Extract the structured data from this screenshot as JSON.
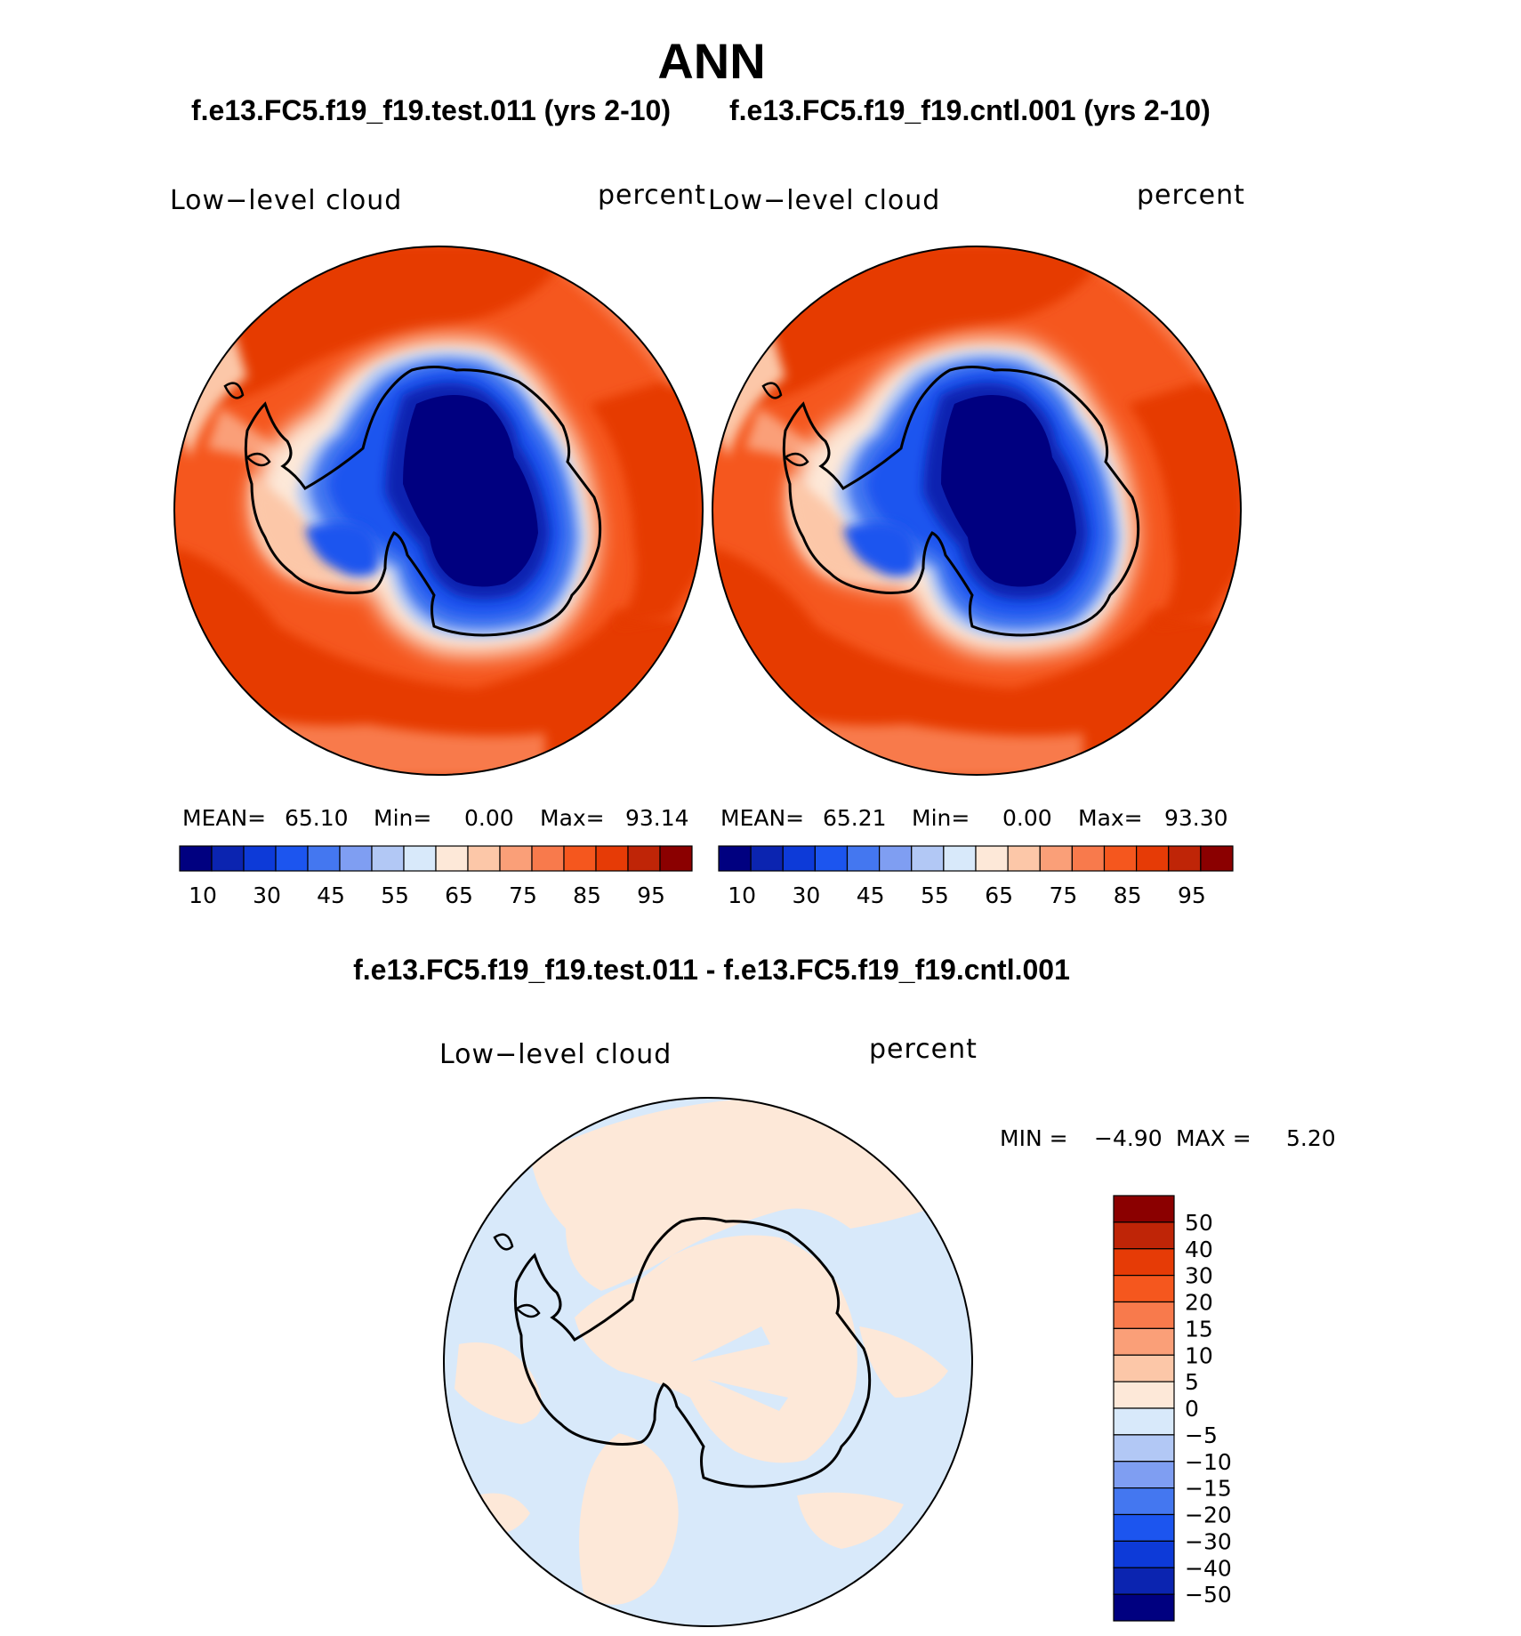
{
  "title": "ANN",
  "panels": [
    {
      "case": "f.e13.FC5.f19_f19.test.011 (yrs 2-10)",
      "variable": "Low−level cloud",
      "units": "percent",
      "mean_label": "MEAN=",
      "mean": "65.10",
      "min_label": "Min=",
      "min": "0.00",
      "max_label": "Max=",
      "max": "93.14"
    },
    {
      "case": "f.e13.FC5.f19_f19.cntl.001 (yrs 2-10)",
      "variable": "Low−level cloud",
      "units": "percent",
      "mean_label": "MEAN=",
      "mean": "65.21",
      "min_label": "Min=",
      "min": "0.00",
      "max_label": "Max=",
      "max": "93.30"
    }
  ],
  "diff": {
    "title": "f.e13.FC5.f19_f19.test.011 - f.e13.FC5.f19_f19.cntl.001",
    "variable": "Low−level cloud",
    "units": "percent",
    "min_label": "MIN =",
    "min": "−4.90",
    "max_label": "MAX =",
    "max": "5.20"
  },
  "chart_data": [
    {
      "type": "heatmap",
      "projection": "south polar stereographic",
      "title": "Low-level cloud",
      "units": "percent",
      "colorbar_levels": [
        "10",
        "30",
        "45",
        "55",
        "65",
        "75",
        "85",
        "95"
      ],
      "colorbar_colors": [
        "#000080",
        "#0b24b0",
        "#0d3ad8",
        "#1c55ef",
        "#4477f0",
        "#7f9ef2",
        "#b2c8f5",
        "#d8e9fa",
        "#fde8d8",
        "#fcc7a8",
        "#fa9f78",
        "#f87a4c",
        "#f5571e",
        "#e63b06",
        "#bf2507",
        "#8b0000"
      ],
      "mean": 65.1,
      "min": 0.0,
      "max": 93.14
    },
    {
      "type": "heatmap",
      "projection": "south polar stereographic",
      "title": "Low-level cloud",
      "units": "percent",
      "colorbar_levels": [
        "10",
        "30",
        "45",
        "55",
        "65",
        "75",
        "85",
        "95"
      ],
      "colorbar_colors": [
        "#000080",
        "#0b24b0",
        "#0d3ad8",
        "#1c55ef",
        "#4477f0",
        "#7f9ef2",
        "#b2c8f5",
        "#d8e9fa",
        "#fde8d8",
        "#fcc7a8",
        "#fa9f78",
        "#f87a4c",
        "#f5571e",
        "#e63b06",
        "#bf2507",
        "#8b0000"
      ],
      "mean": 65.21,
      "min": 0.0,
      "max": 93.3
    },
    {
      "type": "heatmap",
      "projection": "south polar stereographic",
      "title": "Low-level cloud",
      "units": "percent",
      "colorbar_levels": [
        "50",
        "40",
        "30",
        "20",
        "15",
        "10",
        "5",
        "0",
        "−5",
        "−10",
        "−15",
        "−20",
        "−30",
        "−40",
        "−50"
      ],
      "colorbar_colors": [
        "#8b0000",
        "#bf2507",
        "#e63b06",
        "#f5571e",
        "#f87a4c",
        "#fa9f78",
        "#fcc7a8",
        "#fde8d8",
        "#d8e9fa",
        "#b2c8f5",
        "#7f9ef2",
        "#4477f0",
        "#1c55ef",
        "#0d3ad8",
        "#0b24b0",
        "#000080"
      ],
      "min": -4.9,
      "max": 5.2
    }
  ],
  "colors": {
    "ocean_high": "#e63b06",
    "ocean_mid": "#f5571e",
    "ice_low": "#000080",
    "diff_pos": "#fde8d8",
    "diff_neg": "#d8e9fa"
  }
}
